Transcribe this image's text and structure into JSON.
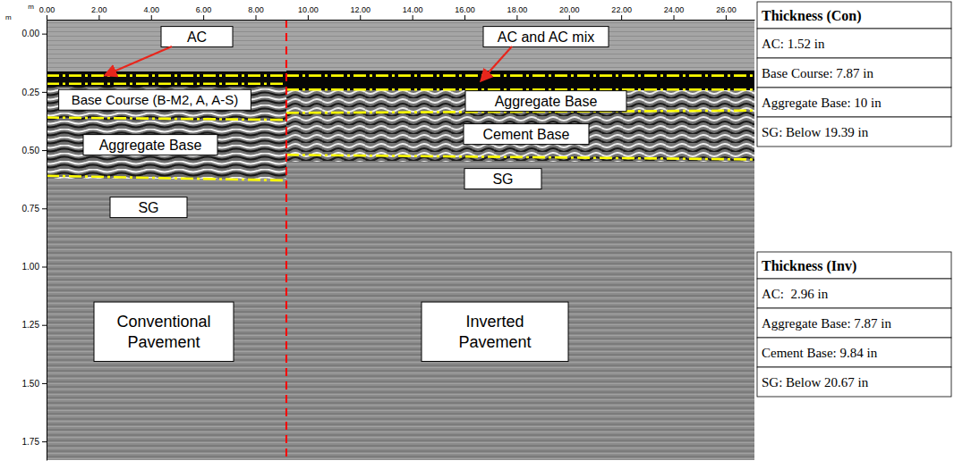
{
  "chart_data": {
    "type": "radargram",
    "x_label": "m",
    "y_label": "m",
    "xlim": [
      0,
      27.1
    ],
    "ylim": [
      -0.06,
      1.83
    ],
    "xticks": [
      {
        "value": 0,
        "label": "0.00"
      },
      {
        "value": 2,
        "label": "2.00"
      },
      {
        "value": 4,
        "label": "4.00"
      },
      {
        "value": 6,
        "label": "6.00"
      },
      {
        "value": 8,
        "label": "8.00"
      },
      {
        "value": 10,
        "label": "10.00"
      },
      {
        "value": 12,
        "label": "12.00"
      },
      {
        "value": 14,
        "label": "14.00"
      },
      {
        "value": 16,
        "label": "16.00"
      },
      {
        "value": 18,
        "label": "18.00"
      },
      {
        "value": 20,
        "label": "20.00"
      },
      {
        "value": 22,
        "label": "22.00"
      },
      {
        "value": 24,
        "label": "24.00"
      },
      {
        "value": 26,
        "label": "26.00"
      }
    ],
    "yticks": [
      {
        "value": 0,
        "label": "0.00"
      },
      {
        "value": 0.25,
        "label": "0.25"
      },
      {
        "value": 0.5,
        "label": "0.50"
      },
      {
        "value": 0.75,
        "label": "0.75"
      },
      {
        "value": 1,
        "label": "1.00"
      },
      {
        "value": 1.25,
        "label": "1.25"
      },
      {
        "value": 1.5,
        "label": "1.50"
      },
      {
        "value": 1.75,
        "label": "1.75"
      }
    ],
    "series": [
      {
        "x": [
          0,
          9.18
        ],
        "values": [
          0.18,
          0.18
        ],
        "color": "#ffff00",
        "line_style": "dashdot"
      },
      {
        "x": [
          0,
          9.18
        ],
        "values": [
          0.215,
          0.215
        ],
        "color": "#ffff00",
        "line_style": "dashdot"
      },
      {
        "x": [
          0,
          9.18
        ],
        "values": [
          0.36,
          0.37
        ],
        "color": "#ffff00",
        "line_style": "dashdot"
      },
      {
        "x": [
          0,
          9.18
        ],
        "values": [
          0.61,
          0.63
        ],
        "color": "#ffff00",
        "line_style": "dashdot"
      },
      {
        "x": [
          9.18,
          27.1
        ],
        "values": [
          0.18,
          0.18
        ],
        "color": "#ffff00",
        "line_style": "dashdot"
      },
      {
        "x": [
          9.18,
          27.1
        ],
        "values": [
          0.24,
          0.24
        ],
        "color": "#ffff00",
        "line_style": "dashdot"
      },
      {
        "x": [
          9.18,
          27.1
        ],
        "values": [
          0.34,
          0.33
        ],
        "color": "#ffff00",
        "line_style": "dashdot"
      },
      {
        "x": [
          9.18,
          27.1
        ],
        "values": [
          0.52,
          0.54
        ],
        "color": "#ffff00",
        "line_style": "dashdot"
      },
      {
        "x": [
          9.18,
          9.18
        ],
        "values": [
          -0.06,
          1.83
        ],
        "color": "#ff0000",
        "line_style": "dashed"
      }
    ],
    "annotations": [
      "AC",
      "AC and AC mix",
      "Base Course (B-M2, A, A-S)",
      "Aggregate Base",
      "SG",
      "Aggregate Base",
      "Cement Base",
      "SG",
      "Conventional Pavement",
      "Inverted Pavement"
    ]
  },
  "tables": [
    {
      "title": "Thickness (Con)",
      "rows": [
        "AC: 1.52 in",
        "Base Course: 7.87 in",
        "Aggregate Base: 10 in",
        "SG: Below 19.39 in"
      ]
    },
    {
      "title": "Thickness (Inv)",
      "rows": [
        "AC:  2.96 in",
        "Aggregate Base: 7.87 in",
        "Cement Base: 9.84 in",
        "SG: Below 20.67 in"
      ]
    }
  ]
}
